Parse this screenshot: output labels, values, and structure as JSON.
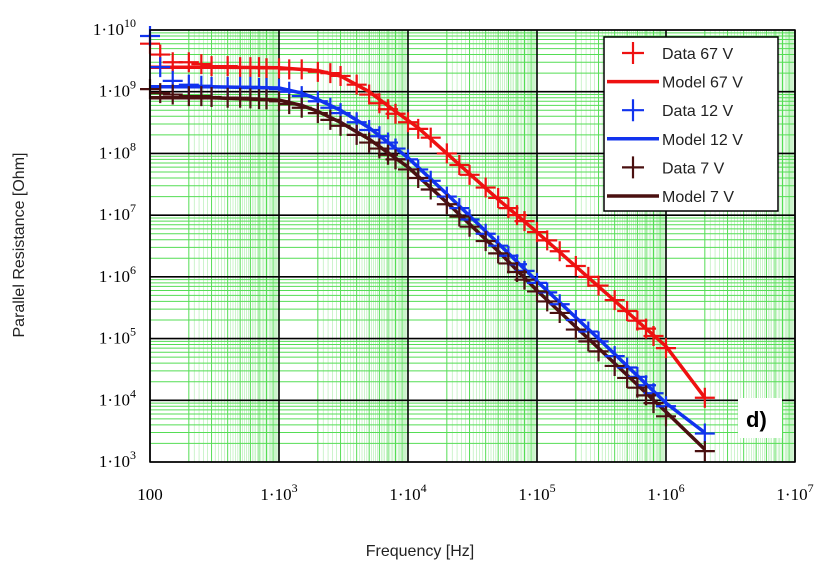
{
  "chart_data": {
    "type": "line",
    "xscale": "log",
    "yscale": "log",
    "xlabel": "Frequency [Hz]",
    "ylabel": "Parallel Resistance [Ohm]",
    "xlim": [
      100,
      10000000
    ],
    "ylim": [
      1000,
      10000000000
    ],
    "panel_label": "d)",
    "x_ticks": [
      {
        "value": 100,
        "base": "100",
        "exp": ""
      },
      {
        "value": 1000,
        "base": "1·10",
        "exp": "3"
      },
      {
        "value": 10000,
        "base": "1·10",
        "exp": "4"
      },
      {
        "value": 100000,
        "base": "1·10",
        "exp": "5"
      },
      {
        "value": 1000000,
        "base": "1·10",
        "exp": "6"
      },
      {
        "value": 10000000,
        "base": "1·10",
        "exp": "7"
      }
    ],
    "y_ticks": [
      {
        "value": 1000,
        "base": "1·10",
        "exp": "3"
      },
      {
        "value": 10000,
        "base": "1·10",
        "exp": "4"
      },
      {
        "value": 100000,
        "base": "1·10",
        "exp": "5"
      },
      {
        "value": 1000000,
        "base": "1·10",
        "exp": "6"
      },
      {
        "value": 10000000,
        "base": "1·10",
        "exp": "7"
      },
      {
        "value": 100000000,
        "base": "1·10",
        "exp": "8"
      },
      {
        "value": 1000000000,
        "base": "1·10",
        "exp": "9"
      },
      {
        "value": 10000000000,
        "base": "1·10",
        "exp": "10"
      }
    ],
    "series": [
      {
        "name": "Data 67 V",
        "kind": "markers",
        "color": "#ee1111",
        "x": [
          100,
          120,
          150,
          200,
          250,
          300,
          400,
          500,
          600,
          700,
          800,
          1000,
          1200,
          1500,
          2000,
          2500,
          3000,
          4000,
          5000,
          6000,
          7000,
          8000,
          10000,
          12000,
          15000,
          20000,
          25000,
          30000,
          40000,
          50000,
          60000,
          70000,
          80000,
          100000,
          120000,
          150000,
          200000,
          250000,
          300000,
          400000,
          500000,
          600000,
          700000,
          800000,
          1000000,
          2000000
        ],
        "y": [
          6000000000.0,
          4000000000.0,
          3000000000.0,
          3000000000.0,
          2800000000.0,
          2600000000.0,
          2600000000.0,
          2500000000.0,
          2500000000.0,
          2500000000.0,
          2400000000.0,
          2400000000.0,
          2300000000.0,
          2300000000.0,
          2100000000.0,
          2000000000.0,
          1800000000.0,
          1300000000.0,
          900000000.0,
          650000000.0,
          520000000.0,
          440000000.0,
          320000000.0,
          250000000.0,
          180000000.0,
          100000000.0,
          65000000.0,
          45000000.0,
          28000000.0,
          19000000.0,
          13000000.0,
          10000000.0,
          8000000.0,
          5300000.0,
          3900000.0,
          2600000.0,
          1500000.0,
          1000000.0,
          720000.0,
          420000.0,
          280000.0,
          195000.0,
          145000.0,
          110000.0,
          70000.0,
          11000.0
        ]
      },
      {
        "name": "Model 67 V",
        "kind": "line",
        "color": "#ee1111",
        "x": [
          100,
          300,
          1000,
          2000,
          3000,
          5000,
          8000,
          12000,
          20000,
          50000,
          100000,
          300000,
          1000000,
          2000000
        ],
        "y": [
          2500000000.0,
          2500000000.0,
          2450000000.0,
          2200000000.0,
          1800000000.0,
          1000000000.0,
          480000000.0,
          260000000.0,
          100000000.0,
          18000000.0,
          5300000.0,
          700000.0,
          75000.0,
          11000.0
        ]
      },
      {
        "name": "Data 12 V",
        "kind": "markers",
        "color": "#1133ee",
        "x": [
          100,
          120,
          150,
          200,
          250,
          300,
          400,
          500,
          600,
          700,
          800,
          1000,
          1200,
          1500,
          2000,
          2500,
          3000,
          4000,
          5000,
          6000,
          7000,
          8000,
          10000,
          12000,
          15000,
          20000,
          25000,
          30000,
          40000,
          50000,
          60000,
          70000,
          80000,
          100000,
          120000,
          150000,
          200000,
          250000,
          300000,
          400000,
          500000,
          600000,
          700000,
          800000,
          1000000,
          2000000
        ],
        "y": [
          8000000000.0,
          2500000000.0,
          1500000000.0,
          1300000000.0,
          1250000000.0,
          1200000000.0,
          1200000000.0,
          1200000000.0,
          1200000000.0,
          1150000000.0,
          1150000000.0,
          1100000000.0,
          1000000000.0,
          850000000.0,
          700000000.0,
          550000000.0,
          450000000.0,
          320000000.0,
          240000000.0,
          190000000.0,
          150000000.0,
          120000000.0,
          80000000.0,
          55000000.0,
          36000000.0,
          20000000.0,
          13000000.0,
          8500000.0,
          5000000.0,
          3200000.0,
          2200000.0,
          1600000.0,
          1250000.0,
          800000.0,
          560000.0,
          360000.0,
          200000.0,
          130000.0,
          90000.0,
          52000.0,
          34000.0,
          24000.0,
          17500.0,
          13000.0,
          8000.0,
          2900.0
        ]
      },
      {
        "name": "Model 12 V",
        "kind": "line",
        "color": "#1133ee",
        "x": [
          100,
          300,
          1000,
          1500,
          2000,
          3000,
          5000,
          10000,
          20000,
          50000,
          100000,
          300000,
          1000000,
          2000000
        ],
        "y": [
          1200000000.0,
          1200000000.0,
          1150000000.0,
          950000000.0,
          750000000.0,
          500000000.0,
          260000000.0,
          85000000.0,
          22000000.0,
          3500000.0,
          850000.0,
          100000.0,
          9000.0,
          3000.0
        ]
      },
      {
        "name": "Data 7 V",
        "kind": "markers",
        "color": "#4a1010",
        "x": [
          100,
          120,
          150,
          200,
          250,
          300,
          400,
          500,
          600,
          700,
          800,
          1000,
          1200,
          1500,
          2000,
          2500,
          3000,
          4000,
          5000,
          6000,
          7000,
          8000,
          10000,
          12000,
          15000,
          20000,
          25000,
          30000,
          40000,
          50000,
          60000,
          70000,
          80000,
          100000,
          120000,
          150000,
          200000,
          250000,
          300000,
          400000,
          500000,
          600000,
          700000,
          800000,
          1000000,
          2000000
        ],
        "y": [
          1100000000.0,
          950000000.0,
          900000000.0,
          850000000.0,
          850000000.0,
          820000000.0,
          800000000.0,
          800000000.0,
          780000000.0,
          760000000.0,
          750000000.0,
          700000000.0,
          630000000.0,
          550000000.0,
          450000000.0,
          350000000.0,
          280000000.0,
          200000000.0,
          150000000.0,
          120000000.0,
          95000000.0,
          80000000.0,
          55000000.0,
          40000000.0,
          26000000.0,
          15000000.0,
          9500000.0,
          6500000.0,
          3800000.0,
          2400000.0,
          1650000.0,
          1200000.0,
          900000.0,
          580000.0,
          400000.0,
          260000.0,
          140000.0,
          90000.0,
          62000.0,
          36000.0,
          23000.0,
          16000.0,
          12000.0,
          9000.0,
          5500.0,
          1500.0
        ]
      },
      {
        "name": "Model 7 V",
        "kind": "line",
        "color": "#4a1010",
        "x": [
          100,
          300,
          1000,
          1500,
          2000,
          3000,
          5000,
          10000,
          20000,
          50000,
          100000,
          300000,
          1000000,
          2000000
        ],
        "y": [
          800000000.0,
          800000000.0,
          730000000.0,
          600000000.0,
          480000000.0,
          320000000.0,
          170000000.0,
          60000000.0,
          16000000.0,
          2600000.0,
          600000.0,
          70000.0,
          6500.0,
          1600.0
        ]
      }
    ]
  }
}
